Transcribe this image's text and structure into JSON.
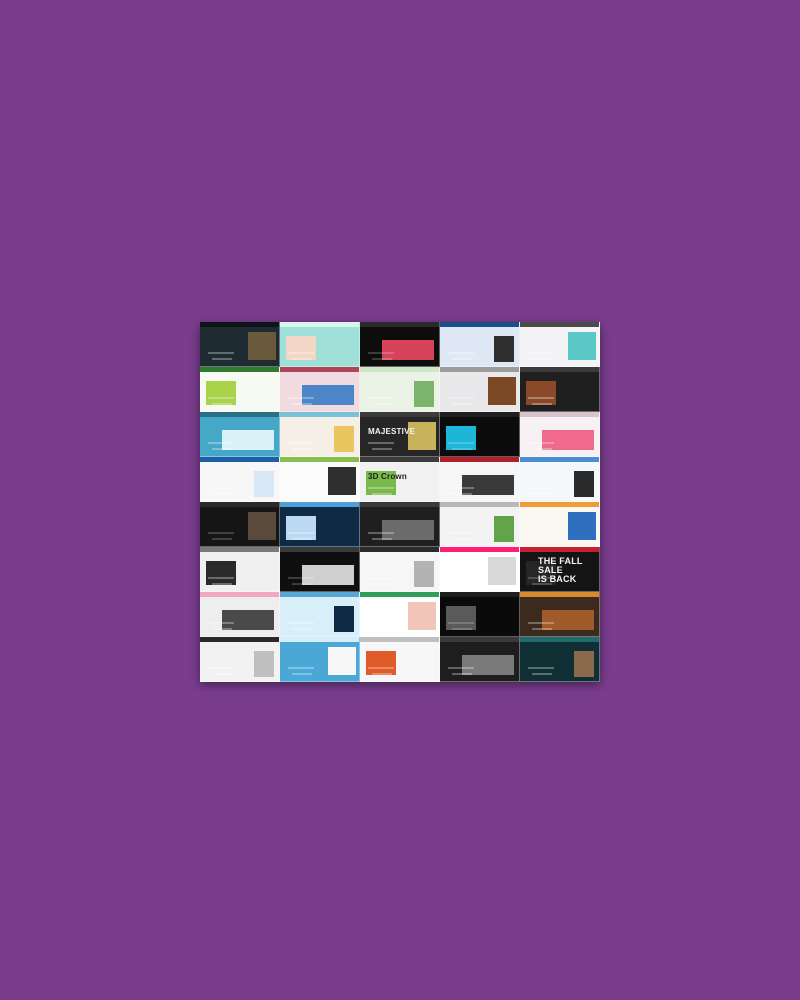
{
  "background_color": "#7a3d8e",
  "tiles": [
    {
      "bg": "#1f2b33",
      "band": "#0f1418",
      "block": "#6a5a3c",
      "fg": "#e8e2d2",
      "text": ""
    },
    {
      "bg": "#9fe0d8",
      "band": "#d9f3ef",
      "block": "#f2d6c6",
      "fg": "#2b2b2b",
      "text": ""
    },
    {
      "bg": "#0d0d0d",
      "band": "#2a2a2a",
      "block": "#d6435b",
      "fg": "#f0f0f0",
      "text": ""
    },
    {
      "bg": "#dfe9f5",
      "band": "#1b4f8a",
      "block": "#2f2f2f",
      "fg": "#1b1b1b",
      "text": ""
    },
    {
      "bg": "#f4f4f6",
      "band": "#4b4b4b",
      "block": "#5ac8c6",
      "fg": "#222",
      "text": ""
    },
    {
      "bg": "#f7f9f3",
      "band": "#2f7c2d",
      "block": "#a8d34b",
      "fg": "#1e1e1e",
      "text": ""
    },
    {
      "bg": "#f2dbe0",
      "band": "#b0445a",
      "block": "#4d86c8",
      "fg": "#222",
      "text": ""
    },
    {
      "bg": "#eaf3e6",
      "band": "#cfe6c7",
      "block": "#7bb46a",
      "fg": "#1f1f1f",
      "text": ""
    },
    {
      "bg": "#e8e8ea",
      "band": "#9c9c9c",
      "block": "#7b4a24",
      "fg": "#1f1f1f",
      "text": ""
    },
    {
      "bg": "#1f1f1f",
      "band": "#3a3a3a",
      "block": "#8a4a2a",
      "fg": "#efefef",
      "text": ""
    },
    {
      "bg": "#45a8c9",
      "band": "#2a6f86",
      "block": "#d9f2f7",
      "fg": "#0e2a33",
      "text": ""
    },
    {
      "bg": "#f6efe6",
      "band": "#79c2d6",
      "block": "#e9c65f",
      "fg": "#222",
      "text": ""
    },
    {
      "bg": "#262626",
      "band": "#3b3b3b",
      "block": "#c7b35a",
      "fg": "#f3f3f3",
      "text": "MAJESTIVE"
    },
    {
      "bg": "#0b0b0b",
      "band": "#1f1f1f",
      "block": "#1db6d9",
      "fg": "#f0f0f0",
      "text": ""
    },
    {
      "bg": "#f7f1f3",
      "band": "#d7c4cc",
      "block": "#f06a8b",
      "fg": "#222",
      "text": ""
    },
    {
      "bg": "#f7f7f7",
      "band": "#1d5ea8",
      "block": "#d8e7f6",
      "fg": "#1d1d1d",
      "text": ""
    },
    {
      "bg": "#fbfbfb",
      "band": "#88c04d",
      "block": "#2f2f2f",
      "fg": "#222",
      "text": ""
    },
    {
      "bg": "#f1f1f1",
      "band": "#3b3b3b",
      "block": "#79b84a",
      "fg": "#1f1f1f",
      "text": "3D Crown"
    },
    {
      "bg": "#f6f6f6",
      "band": "#b11f2b",
      "block": "#3a3a3a",
      "fg": "#1f1f1f",
      "text": ""
    },
    {
      "bg": "#f5f8fb",
      "band": "#4a8fd1",
      "block": "#2a2a2a",
      "fg": "#1f1f1f",
      "text": ""
    },
    {
      "bg": "#151515",
      "band": "#2a2a2a",
      "block": "#5a4a3c",
      "fg": "#f2f2f2",
      "text": ""
    },
    {
      "bg": "#0f2a45",
      "band": "#4f9fd8",
      "block": "#bcd9f2",
      "fg": "#f2f2f2",
      "text": ""
    },
    {
      "bg": "#1f1f1f",
      "band": "#3a3a3a",
      "block": "#6b6b6b",
      "fg": "#f2f2f2",
      "text": ""
    },
    {
      "bg": "#f3f3f3",
      "band": "#b8b8b8",
      "block": "#62a44a",
      "fg": "#1f1f1f",
      "text": ""
    },
    {
      "bg": "#fbf7f1",
      "band": "#f29a3a",
      "block": "#2f6fbf",
      "fg": "#1f1f1f",
      "text": ""
    },
    {
      "bg": "#f0f0f0",
      "band": "#7a7a7a",
      "block": "#2a2a2a",
      "fg": "#1f1f1f",
      "text": ""
    },
    {
      "bg": "#0f0f0f",
      "band": "#3a3a3a",
      "block": "#cfcfcf",
      "fg": "#efefef",
      "text": ""
    },
    {
      "bg": "#f6f6f6",
      "band": "#2a2a2a",
      "block": "#b3b3b3",
      "fg": "#1f1f1f",
      "text": ""
    },
    {
      "bg": "#ffffff",
      "band": "#ff1f77",
      "block": "#d9d9d9",
      "fg": "#1f1f1f",
      "text": ""
    },
    {
      "bg": "#141414",
      "band": "#c61f2f",
      "block": "#262626",
      "fg": "#f7f7f7",
      "text": "THE FALL\nSALE\nIS BACK"
    },
    {
      "bg": "#eeeeee",
      "band": "#f2a6c2",
      "block": "#4a4a4a",
      "fg": "#1f1f1f",
      "text": ""
    },
    {
      "bg": "#d8eef9",
      "band": "#57a8d6",
      "block": "#0f2a45",
      "fg": "#1f1f1f",
      "text": ""
    },
    {
      "bg": "#ffffff",
      "band": "#2f9e5b",
      "block": "#f1c6b8",
      "fg": "#1f1f1f",
      "text": ""
    },
    {
      "bg": "#0a0a0a",
      "band": "#1f1f1f",
      "block": "#5a5a5a",
      "fg": "#f0f0f0",
      "text": ""
    },
    {
      "bg": "#3b2b1e",
      "band": "#d8892f",
      "block": "#a15a2a",
      "fg": "#f0f0f0",
      "text": ""
    },
    {
      "bg": "#f2f2f2",
      "band": "#2a2a2a",
      "block": "#bfbfbf",
      "fg": "#1f1f1f",
      "text": ""
    },
    {
      "bg": "#4ba7d6",
      "band": "#d6eef9",
      "block": "#f7f7f7",
      "fg": "#0f2a45",
      "text": ""
    },
    {
      "bg": "#f7f7f7",
      "band": "#bfbfbf",
      "block": "#e05b2a",
      "fg": "#1f1f1f",
      "text": ""
    },
    {
      "bg": "#1e1e1e",
      "band": "#3a3a3a",
      "block": "#7a7a7a",
      "fg": "#f2f2f2",
      "text": ""
    },
    {
      "bg": "#0f2f34",
      "band": "#1f6a6f",
      "block": "#8a6a4a",
      "fg": "#f2f2f2",
      "text": ""
    }
  ]
}
